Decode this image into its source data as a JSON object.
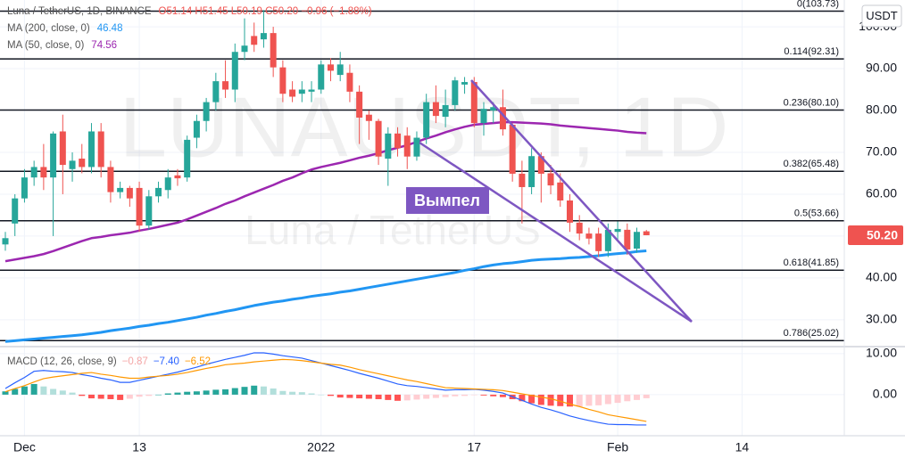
{
  "header": {
    "symbol": "Luna / TetherUS, 1D, BINANCE",
    "ohlc": "O51.14 H51.45 L50.19 C50.20 −0.96 (−1.88%)"
  },
  "watermark": {
    "title": "LUNAUSDT, 1D",
    "subtitle": "Luna / TetherUS"
  },
  "currency_button": "USDT",
  "chart_data": [
    {
      "type": "candlestick",
      "categories": [
        null,
        null,
        "Dec",
        null,
        null,
        null,
        null,
        null,
        null,
        null,
        null,
        null,
        null,
        null,
        "13",
        null,
        null,
        null,
        null,
        null,
        null,
        null,
        null,
        null,
        null,
        null,
        null,
        null,
        null,
        null,
        null,
        null,
        null,
        "2022",
        null,
        null,
        null,
        null,
        null,
        null,
        null,
        null,
        null,
        null,
        null,
        null,
        null,
        null,
        null,
        "17",
        null,
        null,
        null,
        null,
        null,
        null,
        null,
        null,
        null,
        null,
        null,
        null,
        null,
        null,
        "Feb",
        null,
        null,
        null,
        null,
        null,
        null,
        null,
        null,
        null,
        null,
        null,
        null,
        "14"
      ],
      "open": [
        48,
        53,
        59,
        64,
        66.5,
        64,
        75,
        66,
        68.5,
        66.5,
        75,
        66.5,
        60.5,
        61.5,
        61.5,
        52.5,
        59.5,
        61,
        64.5,
        64,
        73.5,
        77.5,
        82,
        87,
        85,
        94,
        97.8,
        97,
        98.5,
        90.3,
        85,
        84,
        84.5,
        85,
        91,
        88.5,
        89,
        84.5,
        79,
        77.5,
        68.5,
        74.5,
        74,
        69,
        73.5,
        82,
        78.5,
        81.3,
        86.2,
        86.8,
        77,
        80,
        80.8,
        76.6,
        64.9,
        61.7,
        69.1,
        65,
        62.8,
        58.5,
        53.2,
        50.6,
        50.6,
        46.4,
        51,
        51.5,
        47,
        51.14,
        null,
        null,
        null,
        null,
        null,
        null,
        null,
        null,
        null,
        null
      ],
      "high": [
        51,
        60,
        66,
        68,
        72,
        75,
        79,
        70,
        72,
        77,
        77,
        68,
        63,
        62,
        63,
        61,
        63,
        66,
        66,
        74,
        79,
        83,
        89,
        92,
        96,
        102,
        101,
        104,
        100,
        92,
        87,
        87,
        87,
        92,
        92.5,
        94,
        91,
        86,
        80,
        78,
        76,
        76,
        76,
        75,
        84,
        86,
        85,
        88,
        88,
        88,
        82,
        82,
        85,
        77,
        68,
        71,
        70,
        67,
        65,
        60,
        55,
        52,
        52,
        53,
        53.5,
        53,
        52,
        51.45,
        null,
        null,
        null,
        null,
        null,
        null,
        null,
        null,
        null,
        null
      ],
      "low": [
        46.5,
        50,
        58,
        62,
        61,
        50,
        60,
        63,
        65,
        65,
        64,
        58,
        59,
        57,
        51,
        51.5,
        58,
        59,
        62,
        63,
        71,
        75,
        80,
        83,
        82,
        92,
        94,
        95,
        88,
        82,
        82,
        82,
        82,
        84,
        87,
        87,
        82,
        72,
        73,
        67,
        62,
        69,
        66,
        68,
        72,
        77,
        76,
        80,
        84,
        76,
        74,
        77,
        74,
        63,
        53,
        60,
        58,
        60,
        57,
        51,
        49,
        48,
        45,
        45,
        49,
        45.5,
        46,
        50.19,
        null,
        null,
        null,
        null,
        null,
        null,
        null,
        null,
        null,
        null
      ],
      "close": [
        49.5,
        59,
        64,
        66.5,
        64,
        74.5,
        67,
        68,
        66.5,
        75,
        66.5,
        60.5,
        61.5,
        59,
        52.5,
        59.5,
        61.5,
        64,
        63.8,
        73,
        77.5,
        82,
        87,
        85,
        94,
        95.5,
        95.7,
        98.5,
        90.3,
        84,
        83.3,
        85,
        85,
        91,
        89.5,
        91,
        84.5,
        78.3,
        77.5,
        69,
        74.5,
        71,
        69,
        73.5,
        82,
        78.7,
        81.3,
        87.2,
        86.8,
        77,
        80.4,
        80.8,
        75.5,
        64.9,
        61.7,
        69.1,
        64.9,
        62.1,
        58.5,
        53.2,
        50.6,
        49.4,
        46.4,
        51.5,
        51.7,
        46.8,
        51,
        50.2,
        null,
        null,
        null,
        null,
        null,
        null,
        null,
        null,
        null,
        null
      ],
      "up_color": "#26a69a",
      "down_color": "#ef5350",
      "close_label": "50.20",
      "series": [
        {
          "name": "MA (200, close, 0)",
          "color": "#2196f3",
          "values": [
            24.8,
            25.0,
            25.2,
            25.4,
            25.6,
            25.8,
            26.0,
            26.2,
            26.4,
            26.7,
            27.0,
            27.4,
            27.7,
            28.0,
            28.4,
            28.7,
            29.1,
            29.4,
            29.8,
            30.2,
            30.6,
            31.1,
            31.5,
            32.0,
            32.4,
            32.9,
            33.4,
            33.8,
            34.2,
            34.5,
            34.9,
            35.2,
            35.6,
            35.9,
            36.2,
            36.6,
            36.9,
            37.3,
            37.7,
            38.1,
            38.5,
            38.9,
            39.3,
            39.7,
            40.1,
            40.5,
            40.9,
            41.3,
            41.8,
            42.2,
            42.7,
            43.1,
            43.4,
            43.6,
            43.9,
            44.2,
            44.4,
            44.5,
            44.6,
            44.8,
            44.9,
            45.1,
            45.3,
            45.6,
            45.8,
            46.0,
            46.3,
            46.48,
            null,
            null,
            null,
            null,
            null,
            null,
            null,
            null,
            null,
            null
          ]
        },
        {
          "name": "MA (50, close, 0)",
          "color": "#9c27b0",
          "values": [
            44.0,
            44.4,
            44.8,
            45.2,
            45.7,
            46.4,
            47.2,
            48.0,
            48.8,
            49.5,
            49.8,
            50.2,
            50.5,
            50.8,
            51.3,
            51.7,
            52.2,
            52.7,
            53.2,
            54.0,
            54.9,
            55.8,
            56.7,
            57.7,
            58.5,
            59.5,
            60.4,
            61.3,
            62.2,
            63.2,
            64.0,
            65.0,
            65.9,
            66.5,
            67.0,
            67.5,
            68.1,
            68.7,
            69.2,
            69.8,
            70.5,
            71.1,
            71.7,
            72.5,
            73.3,
            74.0,
            74.8,
            75.5,
            76.1,
            76.6,
            76.8,
            77.0,
            77.2,
            77.2,
            77.1,
            77.0,
            76.9,
            76.7,
            76.4,
            76.2,
            76.0,
            75.8,
            75.6,
            75.4,
            75.2,
            74.9,
            74.7,
            74.56,
            null,
            null,
            null,
            null,
            null,
            null,
            null,
            null,
            null,
            null
          ]
        }
      ],
      "ylim": [
        23.8,
        106.4
      ],
      "yticks": [
        {
          "value": 30,
          "label": "30.00"
        },
        {
          "value": 40,
          "label": "40.00"
        },
        {
          "value": 50,
          "label": "50.00"
        },
        {
          "value": 60,
          "label": "60.00"
        },
        {
          "value": 70,
          "label": "70.00"
        },
        {
          "value": 80,
          "label": "80.00"
        },
        {
          "value": 90,
          "label": "90.00"
        },
        {
          "value": 100,
          "label": "100.00"
        }
      ],
      "grid": true,
      "fib_levels": [
        {
          "value": 103.73,
          "label": "0(103.73)"
        },
        {
          "value": 92.31,
          "label": "0.114(92.31)"
        },
        {
          "value": 80.1,
          "label": "0.236(80.10)"
        },
        {
          "value": 65.48,
          "label": "0.382(65.48)"
        },
        {
          "value": 53.66,
          "label": "0.5(53.66)"
        },
        {
          "value": 41.85,
          "label": "0.618(41.85)"
        },
        {
          "value": 25.02,
          "label": "0.786(25.02)"
        }
      ],
      "annotation": "Вымпел"
    },
    {
      "type": "macd",
      "title": "MACD (12, 26, close, 9)",
      "histogram": {
        "colors": [
          "#26a69a",
          "#b2dfdb",
          "#ff5252",
          "#ffcdd2"
        ],
        "value_label": "−0.87",
        "label_color": "#f4a6a6",
        "values": [
          0.8,
          1.4,
          2.0,
          2.6,
          2.0,
          1.4,
          1.0,
          0.5,
          -0.3,
          -0.9,
          -1.0,
          -1.1,
          -1.3,
          -1.0,
          -0.5,
          -0.3,
          0.0,
          0.3,
          0.5,
          0.7,
          0.8,
          1.0,
          1.2,
          1.3,
          1.6,
          1.9,
          2.2,
          2.0,
          1.5,
          0.9,
          0.7,
          0.6,
          0.3,
          0.0,
          -0.3,
          -0.7,
          -0.8,
          -0.9,
          -1.0,
          -1.1,
          -1.3,
          -1.5,
          -1.4,
          -1.2,
          -1.0,
          -0.8,
          -0.6,
          -0.4,
          -0.3,
          -0.1,
          -0.2,
          -0.4,
          -0.6,
          -1.1,
          -1.6,
          -2.1,
          -2.5,
          -2.7,
          -2.8,
          -2.9,
          -2.9,
          -2.7,
          -2.6,
          -2.3,
          -2.0,
          -1.6,
          -1.3,
          -0.87,
          null,
          null,
          null,
          null,
          null,
          null,
          null,
          null,
          null,
          null
        ]
      },
      "lines": [
        {
          "color": "#2962ff",
          "value_label": "−7.40",
          "values": [
            1.5,
            2.9,
            4.2,
            5.7,
            5.9,
            5.7,
            5.6,
            5.4,
            4.9,
            4.5,
            4.0,
            3.6,
            3.0,
            3.0,
            3.5,
            4.0,
            4.5,
            5.0,
            5.5,
            6.1,
            6.7,
            7.4,
            8.0,
            8.6,
            9.1,
            9.6,
            10.2,
            10.2,
            9.9,
            9.5,
            9.2,
            8.9,
            8.3,
            7.7,
            7.1,
            6.5,
            5.9,
            5.2,
            4.6,
            4.0,
            3.3,
            2.6,
            2.2,
            2.0,
            1.7,
            1.4,
            1.1,
            1.2,
            1.2,
            1.3,
            1.1,
            0.8,
            0.4,
            -0.5,
            -1.4,
            -2.3,
            -3.1,
            -3.7,
            -4.4,
            -5.2,
            -5.8,
            -6.3,
            -6.8,
            -7.2,
            -7.3,
            -7.3,
            -7.4,
            -7.4,
            null,
            null,
            null,
            null,
            null,
            null,
            null,
            null,
            null,
            null
          ]
        },
        {
          "color": "#ff9800",
          "value_label": "−6.52",
          "values": [
            0.7,
            1.5,
            2.2,
            3.1,
            3.9,
            4.3,
            4.6,
            4.9,
            5.2,
            5.4,
            5.0,
            4.7,
            4.3,
            4.0,
            4.0,
            4.3,
            4.5,
            4.7,
            5.0,
            5.4,
            5.9,
            6.4,
            6.8,
            7.3,
            7.5,
            7.7,
            8.0,
            8.2,
            8.4,
            8.6,
            8.5,
            8.3,
            8.0,
            7.7,
            7.4,
            7.2,
            6.7,
            6.1,
            5.6,
            5.1,
            4.6,
            4.1,
            3.6,
            3.2,
            2.7,
            2.2,
            1.7,
            1.6,
            1.5,
            1.4,
            1.3,
            1.2,
            1.0,
            0.6,
            0.2,
            -0.2,
            -0.6,
            -1.0,
            -1.6,
            -2.3,
            -2.9,
            -3.6,
            -4.2,
            -4.9,
            -5.3,
            -5.7,
            -6.1,
            -6.52,
            null,
            null,
            null,
            null,
            null,
            null,
            null,
            null,
            null,
            null
          ]
        }
      ],
      "ylim": [
        -9.8,
        11.5
      ],
      "yticks": [
        {
          "value": 0,
          "label": "0.00"
        },
        {
          "value": 10,
          "label": "10.00"
        }
      ],
      "grid": true
    }
  ]
}
